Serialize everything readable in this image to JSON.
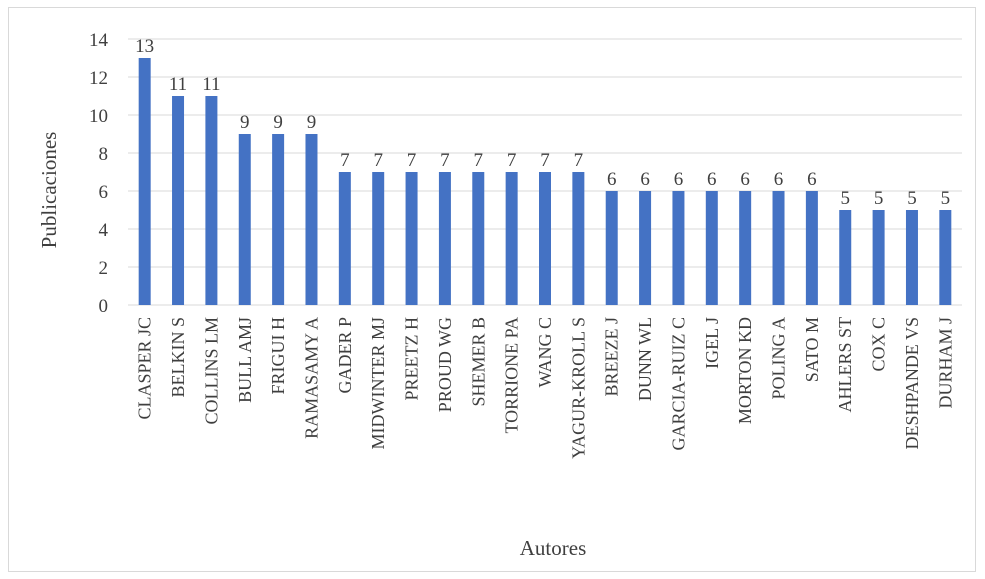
{
  "chart_data": {
    "type": "bar",
    "title": "",
    "xlabel": "Autores",
    "ylabel": "Publicaciones",
    "ylim": [
      0,
      14
    ],
    "yticks": [
      0,
      2,
      4,
      6,
      8,
      10,
      12,
      14
    ],
    "grid": true,
    "legend": "none",
    "bar_color": "#4472c4",
    "categories": [
      "CLASPER JC",
      "BELKIN S",
      "COLLINS LM",
      "BULL AMJ",
      "FRIGUI H",
      "RAMASAMY A",
      "GADER P",
      "MIDWINTER MJ",
      "PREETZ H",
      "PROUD WG",
      "SHEMER B",
      "TORRIONE PA",
      "WANG C",
      "YAGUR-KROLL S",
      "BREEZE J",
      "DUNN WL",
      "GARCIA-RUIZ C",
      "IGEL J",
      "MORTON KD",
      "POLING A",
      "SATO M",
      "AHLERS ST",
      "COX C",
      "DESHPANDE VS",
      "DURHAM J"
    ],
    "values": [
      13,
      11,
      11,
      9,
      9,
      9,
      7,
      7,
      7,
      7,
      7,
      7,
      7,
      7,
      6,
      6,
      6,
      6,
      6,
      6,
      6,
      5,
      5,
      5,
      5
    ]
  }
}
